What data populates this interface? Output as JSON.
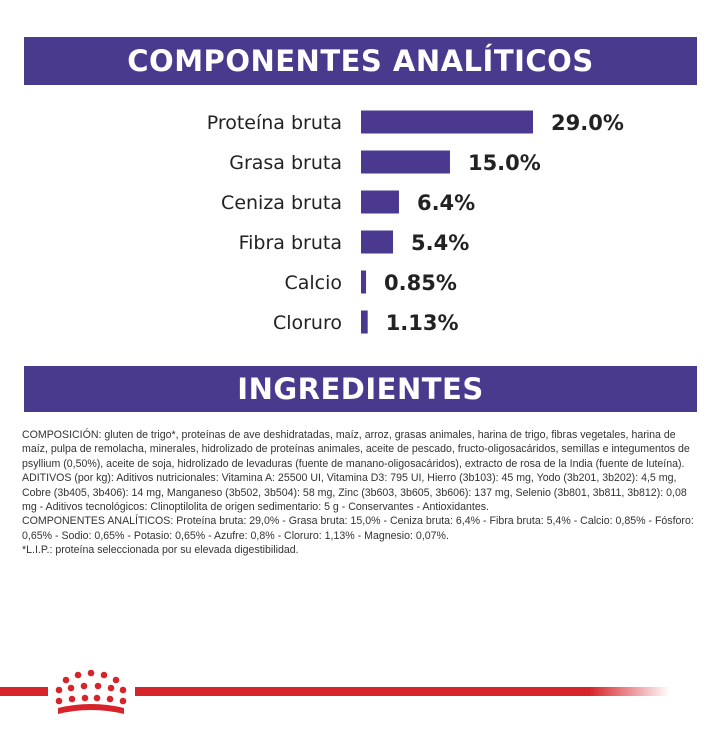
{
  "colors": {
    "brand_purple": "#4a3a8d",
    "bar_purple": "#4b3990",
    "brand_red": "#d7242b",
    "text_dark": "#222222"
  },
  "sections": {
    "components_title": "COMPONENTES ANALÍTICOS",
    "ingredients_title": "INGREDIENTES"
  },
  "chart_data": {
    "type": "bar",
    "orientation": "horizontal",
    "categories": [
      "Proteína bruta",
      "Grasa bruta",
      "Ceniza bruta",
      "Fibra bruta",
      "Calcio",
      "Cloruro"
    ],
    "values": [
      29.0,
      15.0,
      6.4,
      5.4,
      0.85,
      1.13
    ],
    "value_labels": [
      "29.0%",
      "15.0%",
      "6.4%",
      "5.4%",
      "0.85%",
      "1.13%"
    ],
    "unit": "%",
    "title": "",
    "xlabel": "",
    "ylabel": "",
    "grid": false,
    "legend": "none"
  },
  "ingredients": {
    "paragraphs": [
      "COMPOSICIÓN: gluten de trigo*, proteínas de ave deshidratadas, maíz, arroz, grasas animales, harina de trigo, fibras vegetales, harina de maíz, pulpa de remolacha, minerales, hidrolizado de proteínas animales, aceite de pescado, fructo-oligosacáridos, semillas e integumentos de psyllium (0,50%), aceite de soja, hidrolizado de levaduras (fuente de manano-oligosacáridos), extracto de rosa de la India (fuente de luteína).",
      "ADITIVOS (por kg): Aditivos nutricionales: Vitamina A: 25500 UI, Vitamina D3: 795 UI, Hierro (3b103): 45 mg, Yodo (3b201, 3b202): 4,5 mg, Cobre (3b405, 3b406): 14 mg, Manganeso (3b502, 3b504): 58 mg, Zinc (3b603, 3b605, 3b606): 137 mg, Selenio (3b801, 3b811, 3b812): 0,08 mg - Aditivos tecnológicos: Clinoptilolita de origen sedimentario: 5 g - Conservantes - Antioxidantes.",
      "COMPONENTES ANALÍTICOS: Proteína bruta: 29,0% - Grasa bruta: 15,0% - Ceniza bruta: 6,4% - Fibra bruta: 5,4% - Calcio: 0,85% - Fósforo: 0,65% - Sodio: 0,65% - Potasio: 0,65% - Azufre: 0,8% - Cloruro: 1,13% - Magnesio: 0,07%.",
      "*L.I.P.: proteína seleccionada por su elevada digestibilidad."
    ]
  },
  "footer": {
    "logo_icon": "royal-crown-icon"
  }
}
